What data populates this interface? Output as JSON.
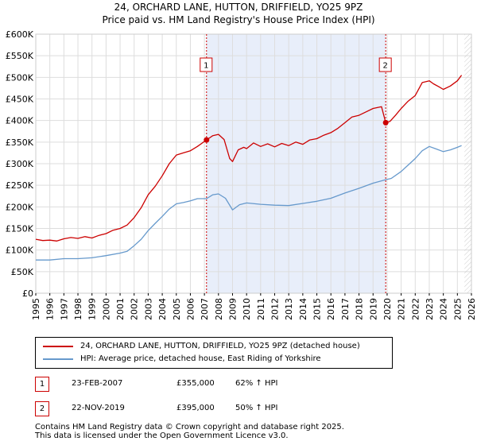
{
  "title_line1": "24, ORCHARD LANE, HUTTON, DRIFFIELD, YO25 9PZ",
  "title_line2": "Price paid vs. HM Land Registry's House Price Index (HPI)",
  "colors": {
    "property": "#cc0000",
    "hpi": "#6699cc",
    "shade": "#e8eefa",
    "grid": "#dddddd",
    "vline": "#cc0000"
  },
  "chart_data": {
    "type": "line",
    "x_range": [
      1995,
      2026
    ],
    "ylim": [
      0,
      600000
    ],
    "y_ticks": [
      {
        "value": 0,
        "label": "£0"
      },
      {
        "value": 50000,
        "label": "£50K"
      },
      {
        "value": 100000,
        "label": "£100K"
      },
      {
        "value": 150000,
        "label": "£150K"
      },
      {
        "value": 200000,
        "label": "£200K"
      },
      {
        "value": 250000,
        "label": "£250K"
      },
      {
        "value": 300000,
        "label": "£300K"
      },
      {
        "value": 350000,
        "label": "£350K"
      },
      {
        "value": 400000,
        "label": "£400K"
      },
      {
        "value": 450000,
        "label": "£450K"
      },
      {
        "value": 500000,
        "label": "£500K"
      },
      {
        "value": 550000,
        "label": "£550K"
      },
      {
        "value": 600000,
        "label": "£600K"
      }
    ],
    "x_ticks": [
      "1995",
      "1996",
      "1997",
      "1998",
      "1999",
      "2000",
      "2001",
      "2002",
      "2003",
      "2004",
      "2005",
      "2006",
      "2007",
      "2008",
      "2009",
      "2010",
      "2011",
      "2012",
      "2013",
      "2014",
      "2015",
      "2016",
      "2017",
      "2018",
      "2019",
      "2020",
      "2021",
      "2022",
      "2023",
      "2024",
      "2025",
      "2026"
    ],
    "shaded_range": [
      2007.15,
      2019.9
    ],
    "future_from": 2025.5,
    "series": [
      {
        "name": "24, ORCHARD LANE, HUTTON, DRIFFIELD, YO25 9PZ (detached house)",
        "color": "#cc0000",
        "points": [
          [
            1995.0,
            125000
          ],
          [
            1995.5,
            122000
          ],
          [
            1996.0,
            123000
          ],
          [
            1996.5,
            121000
          ],
          [
            1997.0,
            126000
          ],
          [
            1997.5,
            129000
          ],
          [
            1998.0,
            127000
          ],
          [
            1998.5,
            131000
          ],
          [
            1999.0,
            128000
          ],
          [
            1999.5,
            134000
          ],
          [
            2000.0,
            138000
          ],
          [
            2000.5,
            146000
          ],
          [
            2001.0,
            150000
          ],
          [
            2001.5,
            158000
          ],
          [
            2002.0,
            175000
          ],
          [
            2002.5,
            198000
          ],
          [
            2003.0,
            228000
          ],
          [
            2003.5,
            248000
          ],
          [
            2004.0,
            272000
          ],
          [
            2004.5,
            300000
          ],
          [
            2005.0,
            320000
          ],
          [
            2005.5,
            325000
          ],
          [
            2006.0,
            330000
          ],
          [
            2006.5,
            340000
          ],
          [
            2007.15,
            355000
          ],
          [
            2007.6,
            365000
          ],
          [
            2008.0,
            368000
          ],
          [
            2008.4,
            356000
          ],
          [
            2008.8,
            312000
          ],
          [
            2009.0,
            305000
          ],
          [
            2009.4,
            332000
          ],
          [
            2009.8,
            338000
          ],
          [
            2010.0,
            335000
          ],
          [
            2010.5,
            348000
          ],
          [
            2011.0,
            340000
          ],
          [
            2011.5,
            346000
          ],
          [
            2012.0,
            339000
          ],
          [
            2012.5,
            347000
          ],
          [
            2013.0,
            342000
          ],
          [
            2013.5,
            350000
          ],
          [
            2014.0,
            345000
          ],
          [
            2014.5,
            355000
          ],
          [
            2015.0,
            358000
          ],
          [
            2015.5,
            366000
          ],
          [
            2016.0,
            372000
          ],
          [
            2016.5,
            382000
          ],
          [
            2017.0,
            395000
          ],
          [
            2017.5,
            408000
          ],
          [
            2018.0,
            412000
          ],
          [
            2018.5,
            420000
          ],
          [
            2019.0,
            428000
          ],
          [
            2019.6,
            432000
          ],
          [
            2019.9,
            395000
          ],
          [
            2020.2,
            398000
          ],
          [
            2020.6,
            412000
          ],
          [
            2021.0,
            428000
          ],
          [
            2021.5,
            445000
          ],
          [
            2022.0,
            458000
          ],
          [
            2022.5,
            488000
          ],
          [
            2023.0,
            492000
          ],
          [
            2023.3,
            485000
          ],
          [
            2023.7,
            478000
          ],
          [
            2024.0,
            472000
          ],
          [
            2024.5,
            480000
          ],
          [
            2025.0,
            492000
          ],
          [
            2025.3,
            505000
          ]
        ]
      },
      {
        "name": "HPI: Average price, detached house, East Riding of Yorkshire",
        "color": "#6699cc",
        "points": [
          [
            1995.0,
            77000
          ],
          [
            1996.0,
            77000
          ],
          [
            1997.0,
            80000
          ],
          [
            1998.0,
            80000
          ],
          [
            1999.0,
            82000
          ],
          [
            2000.0,
            87000
          ],
          [
            2001.0,
            93000
          ],
          [
            2001.5,
            97000
          ],
          [
            2002.0,
            110000
          ],
          [
            2002.5,
            125000
          ],
          [
            2003.0,
            145000
          ],
          [
            2003.5,
            162000
          ],
          [
            2004.0,
            178000
          ],
          [
            2004.5,
            195000
          ],
          [
            2005.0,
            207000
          ],
          [
            2005.5,
            210000
          ],
          [
            2006.0,
            214000
          ],
          [
            2006.5,
            219000
          ],
          [
            2007.15,
            219000
          ],
          [
            2007.6,
            228000
          ],
          [
            2008.0,
            230000
          ],
          [
            2008.5,
            220000
          ],
          [
            2009.0,
            193000
          ],
          [
            2009.5,
            205000
          ],
          [
            2010.0,
            209000
          ],
          [
            2011.0,
            206000
          ],
          [
            2012.0,
            204000
          ],
          [
            2013.0,
            203000
          ],
          [
            2014.0,
            208000
          ],
          [
            2015.0,
            213000
          ],
          [
            2016.0,
            220000
          ],
          [
            2017.0,
            232000
          ],
          [
            2018.0,
            243000
          ],
          [
            2019.0,
            255000
          ],
          [
            2019.9,
            263000
          ],
          [
            2020.3,
            266000
          ],
          [
            2021.0,
            282000
          ],
          [
            2021.5,
            297000
          ],
          [
            2022.0,
            312000
          ],
          [
            2022.5,
            330000
          ],
          [
            2023.0,
            340000
          ],
          [
            2023.5,
            334000
          ],
          [
            2024.0,
            328000
          ],
          [
            2024.5,
            332000
          ],
          [
            2025.0,
            338000
          ],
          [
            2025.3,
            342000
          ]
        ]
      }
    ],
    "sales": [
      {
        "label": "1",
        "x": 2007.15,
        "value": 355000
      },
      {
        "label": "2",
        "x": 2019.9,
        "value": 395000
      }
    ]
  },
  "legend": {
    "property": "24, ORCHARD LANE, HUTTON, DRIFFIELD, YO25 9PZ (detached house)",
    "hpi": "HPI: Average price, detached house, East Riding of Yorkshire"
  },
  "transactions": [
    {
      "num": "1",
      "date": "23-FEB-2007",
      "price": "£355,000",
      "hpi": "62% ↑ HPI"
    },
    {
      "num": "2",
      "date": "22-NOV-2019",
      "price": "£395,000",
      "hpi": "50% ↑ HPI"
    }
  ],
  "footer": {
    "line1": "Contains HM Land Registry data © Crown copyright and database right 2025.",
    "line2": "This data is licensed under the Open Government Licence v3.0."
  }
}
